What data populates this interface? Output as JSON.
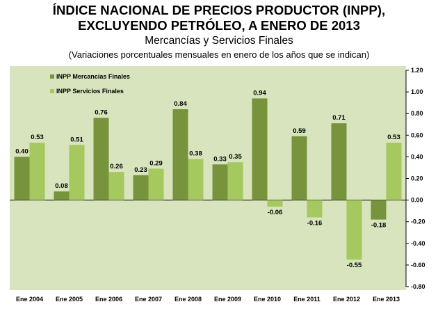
{
  "header": {
    "title_line1": "ÍNDICE NACIONAL DE PRECIOS PRODUCTOR (INPP),",
    "title_line2": "EXCLUYENDO PETRÓLEO, A ENERO DE 2013",
    "subtitle": "Mercancías y Servicios Finales",
    "note": "(Variaciones porcentuales mensuales en enero de los años que se indican)"
  },
  "chart_data": {
    "type": "bar",
    "title": "ÍNDICE NACIONAL DE PRECIOS PRODUCTOR (INPP), EXCLUYENDO PETRÓLEO, A ENERO DE 2013",
    "subtitle": "Mercancías y Servicios Finales",
    "categories": [
      "Ene 2004",
      "Ene 2005",
      "Ene 2006",
      "Ene 2007",
      "Ene 2008",
      "Ene 2009",
      "Ene 2010",
      "Ene 2011",
      "Ene 2012",
      "Ene 2013"
    ],
    "series": [
      {
        "name": "INPP Mercancías Finales",
        "color": "#77933c",
        "values": [
          0.4,
          0.08,
          0.76,
          0.23,
          0.84,
          0.33,
          0.94,
          0.59,
          0.71,
          -0.18
        ],
        "labels": [
          "0.40",
          "0.08",
          "0.76",
          "0.23",
          "0.84",
          "0.33",
          "0.94",
          "0.59",
          "0.71",
          "-0.18"
        ]
      },
      {
        "name": "INPP Servicios  Finales",
        "color": "#a5c85f",
        "values": [
          0.53,
          0.51,
          0.26,
          0.29,
          0.38,
          0.35,
          -0.06,
          -0.16,
          -0.55,
          0.53
        ],
        "labels": [
          "0.53",
          "0.51",
          "0.26",
          "0.29",
          "0.38",
          "0.35",
          "-0.06",
          "-0.16",
          "-0.55",
          "0.53"
        ]
      }
    ],
    "ylim": [
      -0.8,
      1.2
    ],
    "yticks": [
      1.2,
      1.0,
      0.8,
      0.6,
      0.4,
      0.2,
      0.0,
      -0.2,
      -0.4,
      -0.6,
      -0.8
    ],
    "ytick_labels": [
      "1.20",
      "1.00",
      "0.80",
      "0.60",
      "0.40",
      "0.20",
      "0.00",
      "-0.20",
      "-0.40",
      "-0.60",
      "-0.80"
    ],
    "y_axis_side": "right",
    "grid": false,
    "legend_position": "top-left",
    "plot_background": "#d7e4bd"
  }
}
